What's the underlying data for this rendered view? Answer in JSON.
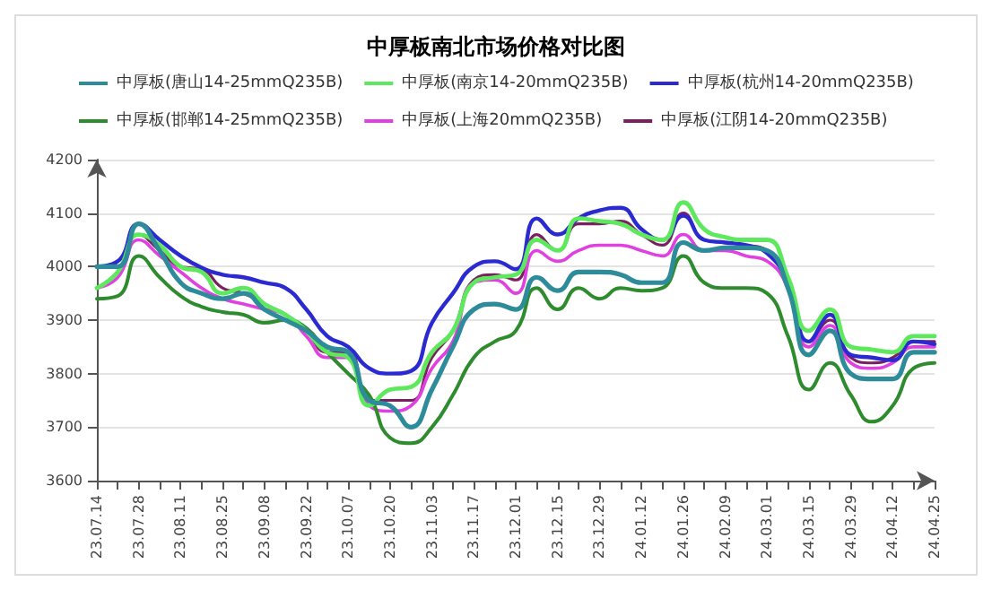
{
  "chart_data": {
    "type": "line",
    "title": "中厚板南北市场价格对比图",
    "categories": [
      "23.07.14",
      null,
      "23.07.28",
      null,
      "23.08.11",
      null,
      "23.08.25",
      null,
      "23.09.08",
      null,
      "23.09.22",
      null,
      "23.10.07",
      null,
      "23.10.20",
      null,
      "23.11.03",
      null,
      "23.11.17",
      null,
      "23.12.01",
      null,
      "23.12.15",
      null,
      "23.12.29",
      null,
      "24.01.12",
      null,
      "24.01.26",
      null,
      "24.02.09",
      null,
      "24.03.01",
      null,
      "24.03.15",
      null,
      "24.03.29",
      null,
      "24.04.12",
      null,
      "24.04.25"
    ],
    "series": [
      {
        "name": "中厚板(唐山14-25mmQ235B)",
        "color": "#2e8b9a",
        "values": [
          4000,
          4000,
          4080,
          4030,
          3970,
          3950,
          3940,
          3950,
          3920,
          3900,
          3880,
          3850,
          3840,
          3750,
          3740,
          3700,
          3770,
          3850,
          3920,
          3930,
          3920,
          3980,
          3955,
          3990,
          3990,
          3985,
          3970,
          3970,
          4045,
          4030,
          4035,
          4035,
          4030,
          3960,
          3835,
          3880,
          3800,
          3790,
          3790,
          3840,
          3840
        ]
      },
      {
        "name": "中厚板(南京14-20mmQ235B)",
        "color": "#5ee85e",
        "values": [
          3960,
          3990,
          4060,
          4040,
          4000,
          3990,
          3950,
          3960,
          3930,
          3910,
          3880,
          3840,
          3830,
          3740,
          3770,
          3775,
          3840,
          3880,
          3970,
          3980,
          3985,
          4050,
          4030,
          4090,
          4085,
          4080,
          4060,
          4050,
          4120,
          4070,
          4055,
          4050,
          4050,
          3980,
          3880,
          3920,
          3850,
          3845,
          3840,
          3870,
          3870
        ]
      },
      {
        "name": "中厚板(杭州14-20mmQ235B)",
        "color": "#2a2ad0",
        "values": [
          4000,
          4010,
          4080,
          4050,
          4020,
          3998,
          3985,
          3980,
          3970,
          3960,
          3920,
          3870,
          3850,
          3810,
          3800,
          3805,
          3895,
          3950,
          4000,
          4010,
          3995,
          4090,
          4060,
          4090,
          4105,
          4110,
          4070,
          4050,
          4095,
          4050,
          4045,
          4040,
          4025,
          3970,
          3860,
          3910,
          3835,
          3830,
          3825,
          3860,
          3855
        ]
      },
      {
        "name": "中厚板(邯郸14-25mmQ235B)",
        "color": "#2e8b2e",
        "values": [
          3940,
          3945,
          4020,
          3980,
          3945,
          3925,
          3915,
          3910,
          3895,
          3900,
          3885,
          3840,
          3800,
          3760,
          3680,
          3670,
          3700,
          3760,
          3830,
          3860,
          3880,
          3960,
          3920,
          3960,
          3940,
          3960,
          3955,
          3960,
          4020,
          3970,
          3960,
          3960,
          3950,
          3870,
          3770,
          3820,
          3760,
          3710,
          3740,
          3810,
          3820
        ]
      },
      {
        "name": "中厚板(上海20mmQ235B)",
        "color": "#e040e0",
        "values": [
          3960,
          3980,
          4050,
          4020,
          3990,
          3960,
          3940,
          3930,
          3920,
          3910,
          3870,
          3830,
          3830,
          3740,
          3730,
          3740,
          3810,
          3860,
          3970,
          3975,
          3950,
          4030,
          4010,
          4030,
          4040,
          4040,
          4030,
          4020,
          4060,
          4030,
          4030,
          4020,
          4010,
          3960,
          3850,
          3890,
          3820,
          3810,
          3820,
          3850,
          3850
        ]
      },
      {
        "name": "中厚板(江阴14-20mmQ235B)",
        "color": "#7a1f5f",
        "values": [
          3960,
          3990,
          4060,
          4030,
          4000,
          3995,
          3960,
          3950,
          3930,
          3910,
          3880,
          3840,
          3840,
          3750,
          3750,
          3750,
          3830,
          3880,
          3975,
          3985,
          3975,
          4060,
          4030,
          4080,
          4080,
          4085,
          4060,
          4040,
          4100,
          4050,
          4045,
          4040,
          4030,
          3975,
          3860,
          3900,
          3830,
          3820,
          3830,
          3860,
          3860
        ]
      }
    ],
    "ylim": [
      3600,
      4200
    ],
    "yticks": [
      3600,
      3700,
      3800,
      3900,
      4000,
      4100,
      4200
    ],
    "grid": "y",
    "legend": "top",
    "marker": "none",
    "line_style": "solid"
  }
}
